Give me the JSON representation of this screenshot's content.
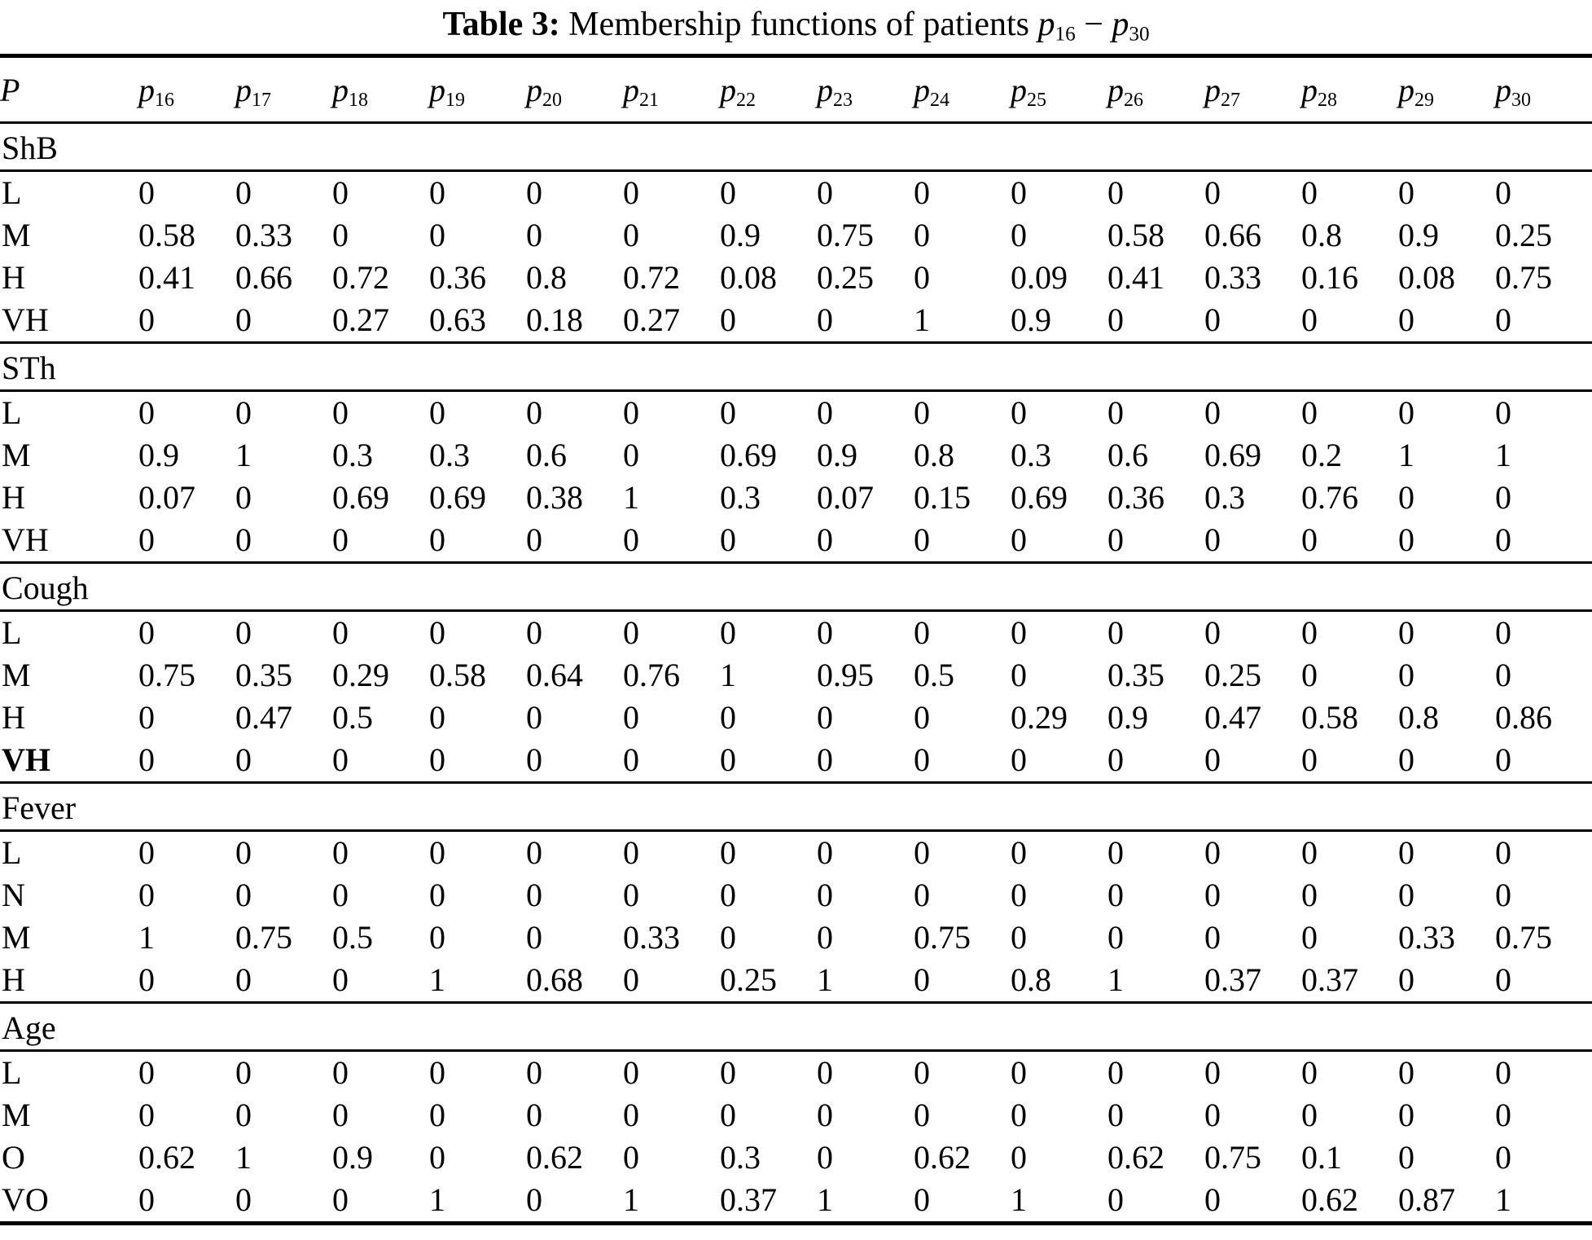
{
  "title": {
    "label": "Table 3:",
    "text": "Membership functions of patients",
    "var_letter": "p",
    "range_from": "16",
    "dash": "−",
    "range_to": "30"
  },
  "table": {
    "header": {
      "first": "P",
      "var_letter": "p",
      "columns": [
        "16",
        "17",
        "18",
        "19",
        "20",
        "21",
        "22",
        "23",
        "24",
        "25",
        "26",
        "27",
        "28",
        "29",
        "30"
      ]
    },
    "sections": [
      {
        "name": "ShB",
        "rows": [
          {
            "label": "L",
            "bold": false,
            "values": [
              0,
              0,
              0,
              0,
              0,
              0,
              0,
              0,
              0,
              0,
              0,
              0,
              0,
              0,
              0
            ]
          },
          {
            "label": "M",
            "bold": false,
            "values": [
              0.58,
              0.33,
              0,
              0,
              0,
              0,
              0.9,
              0.75,
              0,
              0,
              0.58,
              0.66,
              0.8,
              0.9,
              0.25
            ]
          },
          {
            "label": "H",
            "bold": false,
            "values": [
              0.41,
              0.66,
              0.72,
              0.36,
              0.8,
              0.72,
              0.08,
              0.25,
              0,
              0.09,
              0.41,
              0.33,
              0.16,
              0.08,
              0.75
            ]
          },
          {
            "label": "VH",
            "bold": false,
            "values": [
              0,
              0,
              0.27,
              0.63,
              0.18,
              0.27,
              0,
              0,
              1,
              0.9,
              0,
              0,
              0,
              0,
              0
            ]
          }
        ]
      },
      {
        "name": "STh",
        "rows": [
          {
            "label": "L",
            "bold": false,
            "values": [
              0,
              0,
              0,
              0,
              0,
              0,
              0,
              0,
              0,
              0,
              0,
              0,
              0,
              0,
              0
            ]
          },
          {
            "label": "M",
            "bold": false,
            "values": [
              0.9,
              1,
              0.3,
              0.3,
              0.6,
              0,
              0.69,
              0.9,
              0.8,
              0.3,
              0.6,
              0.69,
              0.2,
              1,
              1
            ]
          },
          {
            "label": "H",
            "bold": false,
            "values": [
              0.07,
              0,
              0.69,
              0.69,
              0.38,
              1,
              0.3,
              0.07,
              0.15,
              0.69,
              0.36,
              0.3,
              0.76,
              0,
              0
            ]
          },
          {
            "label": "VH",
            "bold": false,
            "values": [
              0,
              0,
              0,
              0,
              0,
              0,
              0,
              0,
              0,
              0,
              0,
              0,
              0,
              0,
              0
            ]
          }
        ]
      },
      {
        "name": "Cough",
        "rows": [
          {
            "label": "L",
            "bold": false,
            "values": [
              0,
              0,
              0,
              0,
              0,
              0,
              0,
              0,
              0,
              0,
              0,
              0,
              0,
              0,
              0
            ]
          },
          {
            "label": "M",
            "bold": false,
            "values": [
              0.75,
              0.35,
              0.29,
              0.58,
              0.64,
              0.76,
              1,
              0.95,
              0.5,
              0,
              0.35,
              0.25,
              0,
              0,
              0
            ]
          },
          {
            "label": "H",
            "bold": false,
            "values": [
              0,
              0.47,
              0.5,
              0,
              0,
              0,
              0,
              0,
              0,
              0.29,
              0.9,
              0.47,
              0.58,
              0.8,
              0.86
            ]
          },
          {
            "label": "VH",
            "bold": true,
            "values": [
              0,
              0,
              0,
              0,
              0,
              0,
              0,
              0,
              0,
              0,
              0,
              0,
              0,
              0,
              0
            ]
          }
        ]
      },
      {
        "name": "Fever",
        "rows": [
          {
            "label": "L",
            "bold": false,
            "values": [
              0,
              0,
              0,
              0,
              0,
              0,
              0,
              0,
              0,
              0,
              0,
              0,
              0,
              0,
              0
            ]
          },
          {
            "label": "N",
            "bold": false,
            "values": [
              0,
              0,
              0,
              0,
              0,
              0,
              0,
              0,
              0,
              0,
              0,
              0,
              0,
              0,
              0
            ]
          },
          {
            "label": "M",
            "bold": false,
            "values": [
              1,
              0.75,
              0.5,
              0,
              0,
              0.33,
              0,
              0,
              0.75,
              0,
              0,
              0,
              0,
              0.33,
              0.75
            ]
          },
          {
            "label": "H",
            "bold": false,
            "values": [
              0,
              0,
              0,
              1,
              0.68,
              0,
              0.25,
              1,
              0,
              0.8,
              1,
              0.37,
              0.37,
              0,
              0
            ]
          }
        ]
      },
      {
        "name": "Age",
        "rows": [
          {
            "label": "L",
            "bold": false,
            "values": [
              0,
              0,
              0,
              0,
              0,
              0,
              0,
              0,
              0,
              0,
              0,
              0,
              0,
              0,
              0
            ]
          },
          {
            "label": "M",
            "bold": false,
            "values": [
              0,
              0,
              0,
              0,
              0,
              0,
              0,
              0,
              0,
              0,
              0,
              0,
              0,
              0,
              0
            ]
          },
          {
            "label": "O",
            "bold": false,
            "values": [
              0.62,
              1,
              0.9,
              0,
              0.62,
              0,
              0.3,
              0,
              0.62,
              0,
              0.62,
              0.75,
              0.1,
              0,
              0
            ]
          },
          {
            "label": "VO",
            "bold": false,
            "values": [
              0,
              0,
              0,
              1,
              0,
              1,
              0.37,
              1,
              0,
              1,
              0,
              0,
              0.62,
              0.87,
              1
            ]
          }
        ]
      }
    ]
  }
}
